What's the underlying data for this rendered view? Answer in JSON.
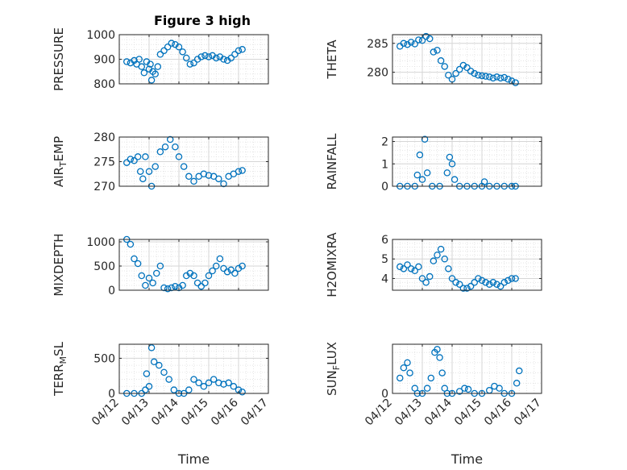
{
  "figure_title": "Figure 3 high",
  "chart_data": [
    {
      "type": "scatter",
      "ylabel": "PRESSURE",
      "title": "Figure 3 high",
      "xlabel": "",
      "xlim": [
        "04/12",
        "04/17"
      ],
      "ylim": [
        800,
        1000
      ],
      "yticks": [
        800,
        900,
        1000
      ],
      "xticklabels_visible": false,
      "points": [
        [
          "04/12 06:00",
          890
        ],
        [
          "04/12 09:00",
          885
        ],
        [
          "04/12 12:00",
          895
        ],
        [
          "04/12 14:00",
          880
        ],
        [
          "04/12 16:00",
          900
        ],
        [
          "04/12 18:00",
          870
        ],
        [
          "04/12 20:00",
          845
        ],
        [
          "04/12 22:00",
          890
        ],
        [
          "04/13 00:00",
          860
        ],
        [
          "04/13 01:00",
          880
        ],
        [
          "04/13 02:00",
          815
        ],
        [
          "04/13 03:00",
          850
        ],
        [
          "04/13 05:00",
          840
        ],
        [
          "04/13 07:00",
          870
        ],
        [
          "04/13 09:00",
          920
        ],
        [
          "04/13 12:00",
          935
        ],
        [
          "04/13 15:00",
          950
        ],
        [
          "04/13 18:00",
          965
        ],
        [
          "04/13 21:00",
          960
        ],
        [
          "04/14 00:00",
          950
        ],
        [
          "04/14 03:00",
          930
        ],
        [
          "04/14 06:00",
          905
        ],
        [
          "04/14 09:00",
          880
        ],
        [
          "04/14 12:00",
          885
        ],
        [
          "04/14 15:00",
          900
        ],
        [
          "04/14 18:00",
          910
        ],
        [
          "04/14 21:00",
          915
        ],
        [
          "04/15 00:00",
          910
        ],
        [
          "04/15 03:00",
          915
        ],
        [
          "04/15 06:00",
          905
        ],
        [
          "04/15 09:00",
          910
        ],
        [
          "04/15 12:00",
          900
        ],
        [
          "04/15 15:00",
          895
        ],
        [
          "04/15 18:00",
          905
        ],
        [
          "04/15 21:00",
          920
        ],
        [
          "04/16 00:00",
          935
        ],
        [
          "04/16 03:00",
          940
        ]
      ]
    },
    {
      "type": "scatter",
      "ylabel": "THETA",
      "xlabel": "",
      "xlim": [
        "04/12",
        "04/17"
      ],
      "ylim": [
        278,
        286.5
      ],
      "yticks": [
        280,
        285
      ],
      "xticklabels_visible": false,
      "points": [
        [
          "04/12 06:00",
          284.5
        ],
        [
          "04/12 09:00",
          285
        ],
        [
          "04/12 12:00",
          284.8
        ],
        [
          "04/12 15:00",
          285.2
        ],
        [
          "04/12 18:00",
          284.9
        ],
        [
          "04/12 21:00",
          285.6
        ],
        [
          "04/13 00:00",
          285.5
        ],
        [
          "04/13 03:00",
          286.2
        ],
        [
          "04/13 06:00",
          285.8
        ],
        [
          "04/13 09:00",
          283.5
        ],
        [
          "04/13 12:00",
          283.8
        ],
        [
          "04/13 15:00",
          282
        ],
        [
          "04/13 18:00",
          281
        ],
        [
          "04/13 21:00",
          279.5
        ],
        [
          "04/14 00:00",
          278.8
        ],
        [
          "04/14 03:00",
          279.8
        ],
        [
          "04/14 06:00",
          280.5
        ],
        [
          "04/14 09:00",
          281.2
        ],
        [
          "04/14 12:00",
          280.8
        ],
        [
          "04/14 15:00",
          280.2
        ],
        [
          "04/14 18:00",
          279.8
        ],
        [
          "04/14 21:00",
          279.5
        ],
        [
          "04/15 00:00",
          279.4
        ],
        [
          "04/15 03:00",
          279.3
        ],
        [
          "04/15 06:00",
          279.2
        ],
        [
          "04/15 09:00",
          279
        ],
        [
          "04/15 12:00",
          279.2
        ],
        [
          "04/15 15:00",
          279
        ],
        [
          "04/15 18:00",
          279.1
        ],
        [
          "04/15 21:00",
          278.8
        ],
        [
          "04/16 00:00",
          278.5
        ],
        [
          "04/16 03:00",
          278.2
        ]
      ]
    },
    {
      "type": "scatter",
      "ylabel": "AIR_TEMP",
      "xlabel": "",
      "xlim": [
        "04/12",
        "04/17"
      ],
      "ylim": [
        270,
        280
      ],
      "yticks": [
        270,
        275,
        280
      ],
      "xticklabels_visible": false,
      "points": [
        [
          "04/12 06:00",
          274.8
        ],
        [
          "04/12 09:00",
          275.5
        ],
        [
          "04/12 12:00",
          275.2
        ],
        [
          "04/12 15:00",
          276
        ],
        [
          "04/12 17:00",
          273
        ],
        [
          "04/12 19:00",
          271.5
        ],
        [
          "04/12 21:00",
          276
        ],
        [
          "04/13 00:00",
          273
        ],
        [
          "04/13 02:00",
          270
        ],
        [
          "04/13 05:00",
          274
        ],
        [
          "04/13 09:00",
          277
        ],
        [
          "04/13 13:00",
          278
        ],
        [
          "04/13 17:00",
          279.5
        ],
        [
          "04/13 21:00",
          278
        ],
        [
          "04/14 00:00",
          276
        ],
        [
          "04/14 04:00",
          274
        ],
        [
          "04/14 08:00",
          272
        ],
        [
          "04/14 12:00",
          271
        ],
        [
          "04/14 16:00",
          272
        ],
        [
          "04/14 20:00",
          272.5
        ],
        [
          "04/15 00:00",
          272.2
        ],
        [
          "04/15 04:00",
          272
        ],
        [
          "04/15 08:00",
          271.5
        ],
        [
          "04/15 12:00",
          270.5
        ],
        [
          "04/15 16:00",
          272
        ],
        [
          "04/15 20:00",
          272.5
        ],
        [
          "04/16 00:00",
          273
        ],
        [
          "04/16 03:00",
          273.2
        ]
      ]
    },
    {
      "type": "scatter",
      "ylabel": "RAINFALL",
      "xlabel": "",
      "xlim": [
        "04/12",
        "04/17"
      ],
      "ylim": [
        0,
        2.2
      ],
      "yticks": [
        0,
        1,
        2
      ],
      "xticklabels_visible": false,
      "points": [
        [
          "04/12 06:00",
          0
        ],
        [
          "04/12 12:00",
          0
        ],
        [
          "04/12 18:00",
          0
        ],
        [
          "04/12 20:00",
          0.5
        ],
        [
          "04/12 22:00",
          1.4
        ],
        [
          "04/13 00:00",
          0.3
        ],
        [
          "04/13 02:00",
          2.1
        ],
        [
          "04/13 04:00",
          0.6
        ],
        [
          "04/13 08:00",
          0
        ],
        [
          "04/13 14:00",
          0
        ],
        [
          "04/13 20:00",
          0.6
        ],
        [
          "04/13 22:00",
          1.3
        ],
        [
          "04/14 00:00",
          1
        ],
        [
          "04/14 02:00",
          0.3
        ],
        [
          "04/14 06:00",
          0
        ],
        [
          "04/14 12:00",
          0
        ],
        [
          "04/14 18:00",
          0
        ],
        [
          "04/15 00:00",
          0
        ],
        [
          "04/15 02:00",
          0.2
        ],
        [
          "04/15 06:00",
          0
        ],
        [
          "04/15 12:00",
          0
        ],
        [
          "04/15 18:00",
          0
        ],
        [
          "04/16 00:00",
          0
        ],
        [
          "04/16 03:00",
          0
        ]
      ]
    },
    {
      "type": "scatter",
      "ylabel": "MIXDEPTH",
      "xlabel": "",
      "xlim": [
        "04/12",
        "04/17"
      ],
      "ylim": [
        0,
        1050
      ],
      "yticks": [
        0,
        500,
        1000
      ],
      "xticklabels_visible": false,
      "points": [
        [
          "04/12 06:00",
          1050
        ],
        [
          "04/12 09:00",
          950
        ],
        [
          "04/12 12:00",
          650
        ],
        [
          "04/12 15:00",
          550
        ],
        [
          "04/12 18:00",
          300
        ],
        [
          "04/12 21:00",
          100
        ],
        [
          "04/13 00:00",
          250
        ],
        [
          "04/13 03:00",
          150
        ],
        [
          "04/13 06:00",
          350
        ],
        [
          "04/13 09:00",
          500
        ],
        [
          "04/13 12:00",
          50
        ],
        [
          "04/13 15:00",
          30
        ],
        [
          "04/13 18:00",
          50
        ],
        [
          "04/13 21:00",
          80
        ],
        [
          "04/14 00:00",
          50
        ],
        [
          "04/14 03:00",
          100
        ],
        [
          "04/14 06:00",
          300
        ],
        [
          "04/14 09:00",
          350
        ],
        [
          "04/14 12:00",
          300
        ],
        [
          "04/14 15:00",
          150
        ],
        [
          "04/14 18:00",
          80
        ],
        [
          "04/14 21:00",
          150
        ],
        [
          "04/15 00:00",
          300
        ],
        [
          "04/15 03:00",
          400
        ],
        [
          "04/15 06:00",
          500
        ],
        [
          "04/15 09:00",
          650
        ],
        [
          "04/15 12:00",
          450
        ],
        [
          "04/15 15:00",
          380
        ],
        [
          "04/15 18:00",
          420
        ],
        [
          "04/15 21:00",
          350
        ],
        [
          "04/16 00:00",
          450
        ],
        [
          "04/16 03:00",
          500
        ]
      ]
    },
    {
      "type": "scatter",
      "ylabel": "H2OMIXRA",
      "xlabel": "",
      "xlim": [
        "04/12",
        "04/17"
      ],
      "ylim": [
        3.4,
        6
      ],
      "yticks": [
        4,
        5,
        6
      ],
      "xticklabels_visible": false,
      "points": [
        [
          "04/12 06:00",
          4.6
        ],
        [
          "04/12 09:00",
          4.5
        ],
        [
          "04/12 12:00",
          4.7
        ],
        [
          "04/12 15:00",
          4.5
        ],
        [
          "04/12 18:00",
          4.4
        ],
        [
          "04/12 21:00",
          4.6
        ],
        [
          "04/13 00:00",
          4
        ],
        [
          "04/13 03:00",
          3.8
        ],
        [
          "04/13 06:00",
          4.1
        ],
        [
          "04/13 09:00",
          4.9
        ],
        [
          "04/13 12:00",
          5.2
        ],
        [
          "04/13 15:00",
          5.5
        ],
        [
          "04/13 18:00",
          5
        ],
        [
          "04/13 21:00",
          4.5
        ],
        [
          "04/14 00:00",
          4
        ],
        [
          "04/14 03:00",
          3.8
        ],
        [
          "04/14 06:00",
          3.7
        ],
        [
          "04/14 09:00",
          3.5
        ],
        [
          "04/14 12:00",
          3.5
        ],
        [
          "04/14 15:00",
          3.6
        ],
        [
          "04/14 18:00",
          3.8
        ],
        [
          "04/14 21:00",
          4
        ],
        [
          "04/15 00:00",
          3.9
        ],
        [
          "04/15 03:00",
          3.8
        ],
        [
          "04/15 06:00",
          3.7
        ],
        [
          "04/15 09:00",
          3.8
        ],
        [
          "04/15 12:00",
          3.7
        ],
        [
          "04/15 15:00",
          3.6
        ],
        [
          "04/15 18:00",
          3.8
        ],
        [
          "04/15 21:00",
          3.9
        ],
        [
          "04/16 00:00",
          4
        ],
        [
          "04/16 03:00",
          4
        ]
      ]
    },
    {
      "type": "scatter",
      "ylabel": "TERR_MSL",
      "xlabel": "Time",
      "xlim": [
        "04/12",
        "04/17"
      ],
      "ylim": [
        0,
        700
      ],
      "yticks": [
        0,
        500
      ],
      "xticklabels": [
        "04/12",
        "04/13",
        "04/14",
        "04/15",
        "04/16",
        "04/17"
      ],
      "points": [
        [
          "04/12 06:00",
          0
        ],
        [
          "04/12 12:00",
          0
        ],
        [
          "04/12 18:00",
          0
        ],
        [
          "04/12 21:00",
          50
        ],
        [
          "04/12 22:00",
          280
        ],
        [
          "04/13 00:00",
          100
        ],
        [
          "04/13 02:00",
          650
        ],
        [
          "04/13 04:00",
          450
        ],
        [
          "04/13 08:00",
          400
        ],
        [
          "04/13 12:00",
          300
        ],
        [
          "04/13 16:00",
          200
        ],
        [
          "04/13 20:00",
          50
        ],
        [
          "04/14 00:00",
          0
        ],
        [
          "04/14 04:00",
          0
        ],
        [
          "04/14 08:00",
          50
        ],
        [
          "04/14 12:00",
          200
        ],
        [
          "04/14 16:00",
          150
        ],
        [
          "04/14 20:00",
          100
        ],
        [
          "04/15 00:00",
          150
        ],
        [
          "04/15 04:00",
          200
        ],
        [
          "04/15 08:00",
          150
        ],
        [
          "04/15 12:00",
          130
        ],
        [
          "04/15 16:00",
          150
        ],
        [
          "04/15 20:00",
          100
        ],
        [
          "04/16 00:00",
          50
        ],
        [
          "04/16 03:00",
          20
        ]
      ]
    },
    {
      "type": "scatter",
      "ylabel": "SUN_FLUX",
      "xlabel": "Time",
      "xlim": [
        "04/12",
        "04/17"
      ],
      "ylim": [
        0,
        480
      ],
      "yticks": [
        0,
        500
      ],
      "xticklabels": [
        "04/12",
        "04/13",
        "04/14",
        "04/15",
        "04/16",
        "04/17"
      ],
      "points": [
        [
          "04/12 06:00",
          150
        ],
        [
          "04/12 09:00",
          250
        ],
        [
          "04/12 12:00",
          300
        ],
        [
          "04/12 14:00",
          200
        ],
        [
          "04/12 18:00",
          50
        ],
        [
          "04/12 20:00",
          0
        ],
        [
          "04/13 00:00",
          0
        ],
        [
          "04/13 04:00",
          50
        ],
        [
          "04/13 07:00",
          150
        ],
        [
          "04/13 10:00",
          400
        ],
        [
          "04/13 12:00",
          430
        ],
        [
          "04/13 14:00",
          350
        ],
        [
          "04/13 16:00",
          200
        ],
        [
          "04/13 18:00",
          50
        ],
        [
          "04/13 20:00",
          0
        ],
        [
          "04/14 00:00",
          0
        ],
        [
          "04/14 06:00",
          20
        ],
        [
          "04/14 10:00",
          50
        ],
        [
          "04/14 13:00",
          40
        ],
        [
          "04/14 18:00",
          0
        ],
        [
          "04/15 00:00",
          0
        ],
        [
          "04/15 06:00",
          30
        ],
        [
          "04/15 10:00",
          70
        ],
        [
          "04/15 14:00",
          50
        ],
        [
          "04/15 18:00",
          0
        ],
        [
          "04/16 00:00",
          0
        ],
        [
          "04/16 04:00",
          100
        ],
        [
          "04/16 06:00",
          220
        ]
      ]
    }
  ],
  "colors": {
    "marker": "#0072bd",
    "axis": "#262626",
    "grid": "#dfdfdf"
  }
}
